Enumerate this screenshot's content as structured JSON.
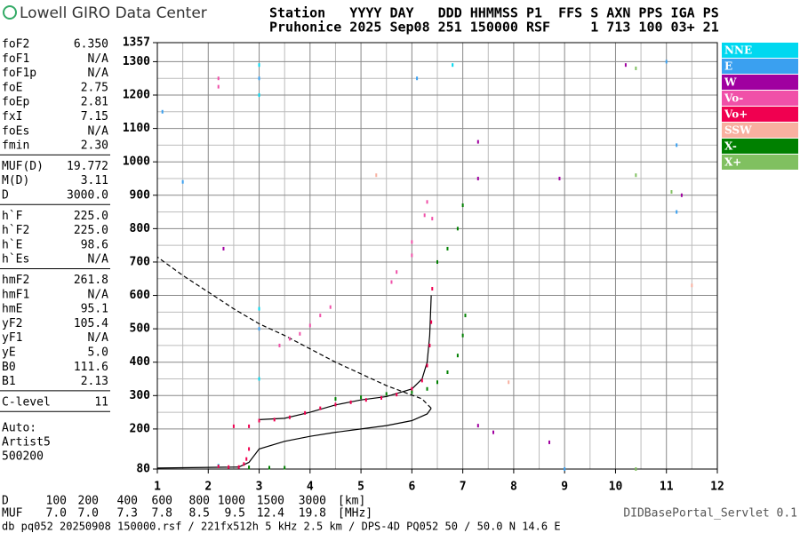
{
  "header": {
    "logo": "Lowell GIRO Data Center",
    "fields": "Station   YYYY DAY   DDD HHMMSS P1  FFS S AXN PPS IGA PS",
    "values": "Pruhonice 2025 Sep08 251 150000 RSF     1 713 100 03+ 21"
  },
  "parameters": [
    [
      [
        "foF2",
        "6.350"
      ],
      [
        "foF1",
        "N/A"
      ],
      [
        "foF1p",
        "N/A"
      ],
      [
        "foE",
        "2.75"
      ],
      [
        "foEp",
        "2.81"
      ],
      [
        "fxI",
        "7.15"
      ],
      [
        "foEs",
        "N/A"
      ],
      [
        "fmin",
        "2.30"
      ]
    ],
    [
      [
        "MUF(D)",
        "19.772"
      ],
      [
        "M(D)",
        "3.11"
      ],
      [
        "D",
        "3000.0"
      ]
    ],
    [
      [
        "h`F",
        "225.0"
      ],
      [
        "h`F2",
        "225.0"
      ],
      [
        "h`E",
        "98.6"
      ],
      [
        "h`Es",
        "N/A"
      ]
    ],
    [
      [
        "hmF2",
        "261.8"
      ],
      [
        "hmF1",
        "N/A"
      ],
      [
        "hmE",
        "95.1"
      ],
      [
        "yF2",
        "105.4"
      ],
      [
        "yF1",
        "N/A"
      ],
      [
        "yE",
        "5.0"
      ],
      [
        "B0",
        "111.6"
      ],
      [
        "B1",
        "2.13"
      ]
    ],
    [
      [
        "C-level",
        "11"
      ]
    ]
  ],
  "auto": [
    "Auto:",
    "Artist5",
    "500200"
  ],
  "d_muf": [
    {
      "label": "D",
      "values": [
        "100",
        "200",
        "400",
        "600",
        "800",
        "1000",
        "1500",
        "3000"
      ],
      "unit": "[km]"
    },
    {
      "label": "MUF",
      "values": [
        "7.0",
        "7.0",
        "7.3",
        "7.8",
        "8.5",
        "9.5",
        "12.4",
        "19.8"
      ],
      "unit": "[MHz]"
    }
  ],
  "footer": {
    "file": "db pq052 20250908 150000.rsf / 221fx512h 5 kHz 2.5 km / DPS-4D PQ052 50 / 50.0 N 14.6 E",
    "servlet": "DIDBasePortal_Servlet 0.1"
  },
  "chart_data": {
    "type": "scatter",
    "grid": true,
    "xlim": [
      1,
      12
    ],
    "xticks": [
      1,
      2,
      3,
      4,
      5,
      6,
      7,
      8,
      9,
      10,
      11,
      12
    ],
    "ylim": [
      80,
      1357
    ],
    "yticks": [
      80,
      200,
      300,
      400,
      500,
      600,
      700,
      800,
      900,
      1000,
      1100,
      1200,
      1300,
      1357
    ],
    "series": [
      {
        "name": "NNE",
        "color": "#00d8f0",
        "x": [
          3.0,
          3.0,
          3.0,
          3.0,
          6.8,
          2.2
        ],
        "values": [
          1290,
          1200,
          560,
          350,
          1290,
          90
        ]
      },
      {
        "name": "E",
        "color": "#3aa0f0",
        "x": [
          1.1,
          1.5,
          3.0,
          3.0,
          6.1,
          11.2,
          11.2,
          11.0,
          9.0
        ],
        "values": [
          1150,
          940,
          1250,
          500,
          1250,
          1050,
          850,
          1300,
          80
        ]
      },
      {
        "name": "W",
        "color": "#a000a0",
        "x": [
          7.3,
          7.3,
          8.9,
          7.3,
          7.6,
          8.7,
          10.2,
          11.3,
          2.3
        ],
        "values": [
          1060,
          950,
          950,
          210,
          190,
          160,
          1290,
          900,
          740
        ]
      },
      {
        "name": "Vo-",
        "color": "#f050a8",
        "x": [
          3.4,
          3.6,
          3.8,
          4.0,
          4.2,
          4.4,
          5.6,
          5.7,
          6.0,
          6.0,
          6.25,
          6.3,
          6.4,
          2.2,
          2.2
        ],
        "values": [
          450,
          470,
          485,
          510,
          540,
          565,
          640,
          670,
          720,
          760,
          840,
          880,
          830,
          1250,
          1225
        ]
      },
      {
        "name": "Vo+",
        "color": "#f00050",
        "x": [
          3.0,
          3.3,
          3.6,
          3.9,
          4.2,
          4.5,
          4.8,
          5.1,
          5.4,
          5.7,
          6.0,
          6.2,
          6.3,
          6.35,
          6.38,
          6.4,
          2.2,
          2.4,
          2.6,
          2.7,
          2.75,
          2.8,
          2.5,
          2.8
        ],
        "values": [
          225,
          228,
          235,
          248,
          262,
          273,
          280,
          287,
          293,
          303,
          320,
          345,
          390,
          450,
          520,
          620,
          88,
          86,
          86,
          95,
          110,
          140,
          208,
          208
        ]
      },
      {
        "name": "SSW",
        "color": "#f8b0a0",
        "x": [
          7.9,
          11.5,
          5.3
        ],
        "values": [
          340,
          630,
          960
        ]
      },
      {
        "name": "X-",
        "color": "#008000",
        "x": [
          2.8,
          3.2,
          3.5,
          4.5,
          5.0,
          5.5,
          6.0,
          6.3,
          6.5,
          6.7,
          6.9,
          7.0,
          7.05,
          6.5,
          6.7,
          6.9,
          7.0
        ],
        "values": [
          85,
          84,
          84,
          290,
          295,
          305,
          310,
          320,
          340,
          370,
          420,
          480,
          540,
          700,
          740,
          800,
          870
        ]
      },
      {
        "name": "X+",
        "color": "#80c060",
        "x": [
          10.4,
          10.4,
          10.4,
          11.1
        ],
        "values": [
          1280,
          960,
          80,
          910
        ]
      }
    ],
    "lines": [
      {
        "color": "#000",
        "style": "solid",
        "x": [
          1.0,
          2.6,
          2.8,
          3.0,
          3.5,
          4.0,
          4.5,
          5.0,
          5.5,
          6.0,
          6.3,
          6.38
        ],
        "values": [
          83,
          86,
          100,
          140,
          163,
          178,
          190,
          200,
          210,
          225,
          245,
          262
        ]
      },
      {
        "color": "#000",
        "style": "dashed",
        "x": [
          6.38,
          6.2,
          5.5,
          5.0,
          4.5,
          4.0,
          3.5,
          3.0,
          2.5,
          2.0,
          1.5,
          1.0
        ],
        "values": [
          262,
          290,
          330,
          365,
          400,
          440,
          480,
          515,
          560,
          610,
          660,
          715
        ]
      },
      {
        "color": "#000",
        "style": "solid",
        "x": [
          3.0,
          3.5,
          4.0,
          4.5,
          5.0,
          5.5,
          6.0,
          6.2,
          6.3,
          6.35,
          6.38
        ],
        "values": [
          228,
          232,
          250,
          272,
          287,
          297,
          320,
          350,
          400,
          480,
          600
        ]
      }
    ]
  }
}
